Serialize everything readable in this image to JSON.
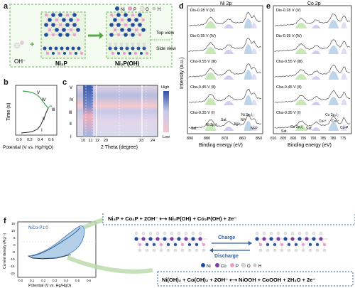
{
  "panel_letters": {
    "a": "a",
    "b": "b",
    "c": "c",
    "d": "d",
    "e": "e",
    "f": "f"
  },
  "panel_a": {
    "legend": [
      "Ni",
      "P",
      "O",
      "H"
    ],
    "colors": {
      "Ni": "#1f4e9c",
      "P": "#e89fc4",
      "O": "#e6e6e6",
      "H": "#c9c9c9",
      "box": "#5aa84a"
    },
    "oh_label": "OH⁻",
    "plus": "+",
    "left_label": "Ni₂P",
    "right_label": "Ni₂P(OH)",
    "top_view": "Top view",
    "side_view": "Side view"
  },
  "panel_b": {
    "xlabel": "Potential (V vs. Hg/HgO)",
    "ylabel": "Time (s)",
    "xticks": [
      "0.0",
      "0.2",
      "0.4",
      "0.6"
    ],
    "roman": [
      "Ⅰ",
      "Ⅱ",
      "Ⅲ",
      "Ⅳ",
      "Ⅴ"
    ]
  },
  "panel_c": {
    "xlabel": "2 Theta (degree)",
    "xticks": [
      "10",
      "11",
      "12",
      "20",
      "23",
      "24"
    ],
    "yticks": [
      "Ⅴ",
      "Ⅳ",
      "Ⅲ",
      "Ⅱ",
      "Ⅰ"
    ],
    "colorbar_high": "High",
    "colorbar_low": "Low"
  },
  "panel_d": {
    "title": "Ni 2p",
    "ylabel": "Intensity (a.u.)",
    "xlabel": "Binding energy (eV)",
    "xticks": [
      "890",
      "880",
      "870",
      "860",
      "850"
    ],
    "traces": [
      "Dis-0.28 V (Ⅴ)",
      "Dis-0.35 V (Ⅳ)",
      "Cha-0.55 V (Ⅲ)",
      "Cha-0.45 V (Ⅱ)",
      "Cha-0.35 V (Ⅰ)"
    ],
    "annotations": {
      "sat1": "Sat.",
      "peak12": "Ni 2p₁/₂",
      "sat2": "Sat.",
      "peak32": "Ni 2p₃/₂",
      "ni3": "Ni³⁺",
      "ni2": "Ni²⁺",
      "nip": "Ni-P"
    }
  },
  "panel_e": {
    "title": "Co 2p",
    "xlabel": "Binding energy (eV)",
    "xticks": [
      "810",
      "805",
      "800",
      "795",
      "790",
      "785",
      "780",
      "775"
    ],
    "traces": [
      "Dis-0.28 V (Ⅴ)",
      "Dis-0.35 V (Ⅳ)",
      "Cha-0.55 V (Ⅲ)",
      "Cha-0.45 V (Ⅱ)",
      "Cha-0.35 V (Ⅰ)"
    ],
    "annotations": {
      "sat1": "Sat.",
      "peak12": "Co 2p₁/₂",
      "sat2": "Sat.",
      "peak32": "Co 2p₃/₂",
      "co2": "Co²⁺",
      "co3": "Co³⁺",
      "cop": "Co-P"
    }
  },
  "panel_f": {
    "cv_label": "NiCo-P1:0",
    "ylabel": "Current density (A g⁻¹)",
    "xlabel": "Potential (V vs. Hg/HgO)",
    "yticks": [
      "15",
      "10",
      "5",
      "0",
      "-5",
      "-10",
      "-15",
      "-20"
    ],
    "xticks": [
      "0.0",
      "0.1",
      "0.2",
      "0.3",
      "0.4",
      "0.5",
      "0.6"
    ],
    "eq_top": "Ni₂P + Co₂P + 2OH⁻ ⟷ Ni₂P(OH) + Co₂P(OH) + 2e⁻",
    "eq_bottom": "Ni(OH)₂ + Co(OH)₂ + 2OH⁻ ⟷ NiOOH + CoOOH + 2H₂O + 2e⁻",
    "charge": "Charge",
    "discharge": "Discharge",
    "legend": [
      "Ni",
      "Co",
      "P",
      "O",
      "H"
    ],
    "legend_colors": {
      "Ni": "#1f4e9c",
      "Co": "#7a3fa0",
      "P": "#e89fc4",
      "O": "#d9d9d9",
      "H": "#c7c7c7"
    }
  }
}
